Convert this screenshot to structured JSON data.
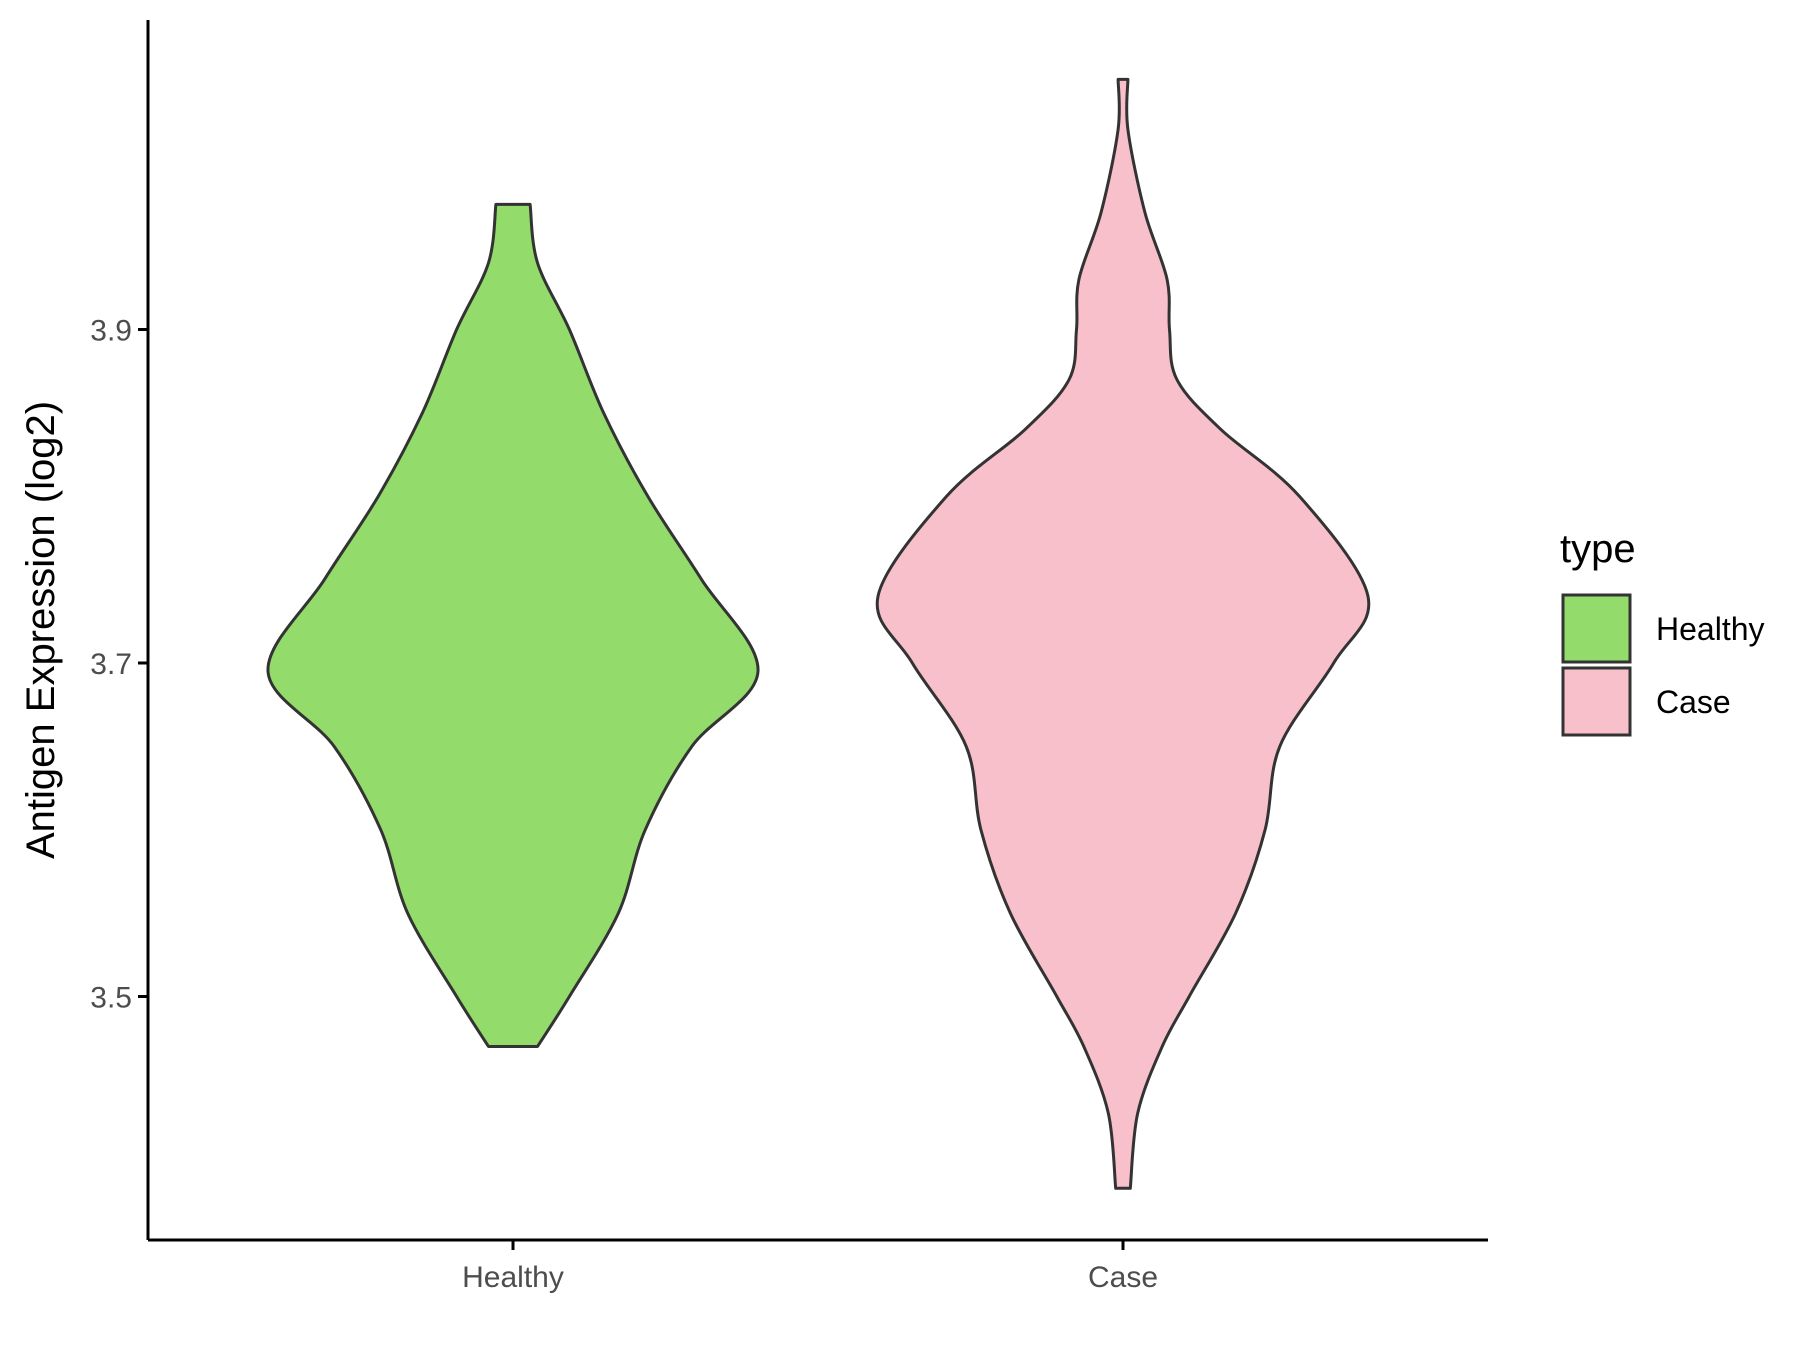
{
  "chart_data": {
    "type": "violin",
    "title": "",
    "xlabel": "",
    "ylabel": "Antigen Expression (log2)",
    "categories": [
      "Healthy",
      "Case"
    ],
    "yticks": [
      "3.5",
      "3.7",
      "3.9"
    ],
    "ylim": [
      3.36,
      4.09
    ],
    "legend": {
      "title": "type",
      "placement": "right",
      "entries": [
        {
          "label": "Healthy",
          "color": "#93dc6b"
        },
        {
          "label": "Case",
          "color": "#f8c0cb"
        }
      ]
    },
    "series": [
      {
        "color": "#93dc6b",
        "ymin": 3.47,
        "ymax": 3.975,
        "profile": [
          [
            3.47,
            0.1
          ],
          [
            3.5,
            0.23
          ],
          [
            3.55,
            0.43
          ],
          [
            3.6,
            0.54
          ],
          [
            3.65,
            0.73
          ],
          [
            3.695,
            1.0
          ],
          [
            3.75,
            0.77
          ],
          [
            3.8,
            0.55
          ],
          [
            3.85,
            0.37
          ],
          [
            3.9,
            0.23
          ],
          [
            3.94,
            0.1
          ],
          [
            3.975,
            0.07
          ]
        ]
      },
      {
        "color": "#f8c0cb",
        "ymin": 3.385,
        "ymax": 4.05,
        "profile": [
          [
            3.385,
            0.03
          ],
          [
            3.43,
            0.06
          ],
          [
            3.47,
            0.16
          ],
          [
            3.5,
            0.27
          ],
          [
            3.55,
            0.46
          ],
          [
            3.6,
            0.58
          ],
          [
            3.65,
            0.64
          ],
          [
            3.7,
            0.86
          ],
          [
            3.74,
            1.0
          ],
          [
            3.8,
            0.72
          ],
          [
            3.84,
            0.4
          ],
          [
            3.87,
            0.22
          ],
          [
            3.9,
            0.19
          ],
          [
            3.93,
            0.18
          ],
          [
            3.97,
            0.09
          ],
          [
            4.02,
            0.02
          ],
          [
            4.05,
            0.02
          ]
        ]
      }
    ]
  },
  "style": {
    "outline_color": "#333333",
    "axis_color": "#000000",
    "tick_label_color": "#4d4d4d",
    "background": "#ffffff"
  }
}
